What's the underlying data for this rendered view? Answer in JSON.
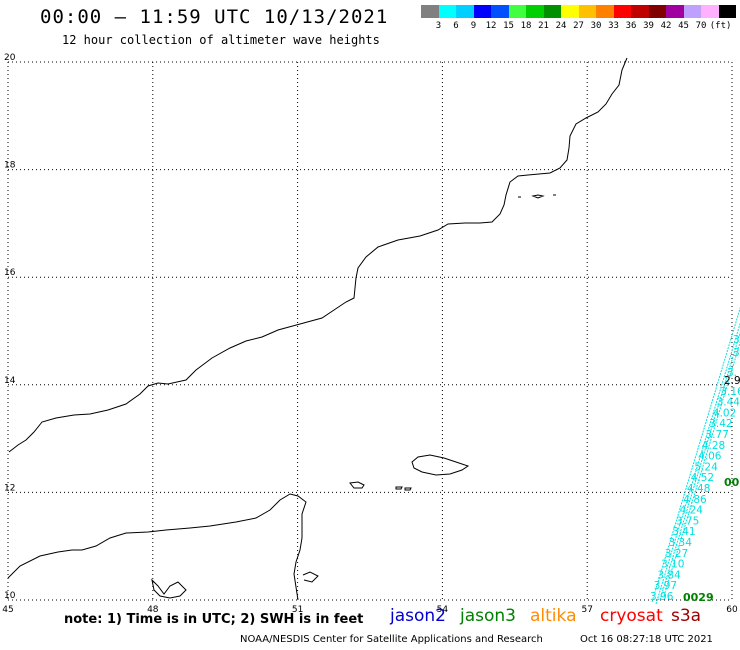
{
  "header": {
    "title": "00:00 — 11:59 UTC 10/13/2021",
    "subtitle": "12 hour collection of altimeter wave heights"
  },
  "color_scale": {
    "colors": [
      "#808080",
      "#00ffff",
      "#00d0ff",
      "#0000ff",
      "#0050ff",
      "#40ff40",
      "#00d000",
      "#009000",
      "#ffff00",
      "#ffc000",
      "#ff8000",
      "#ff0000",
      "#c00000",
      "#800000",
      "#a000a0",
      "#c0a0ff",
      "#ffb0ff",
      "#000000"
    ],
    "labels": [
      "3",
      "6",
      "9",
      "12",
      "15",
      "18",
      "21",
      "24",
      "27",
      "30",
      "33",
      "36",
      "39",
      "42",
      "45",
      "70",
      "(ft)"
    ]
  },
  "map": {
    "lon_range": [
      45,
      60
    ],
    "lat_range": [
      10,
      20
    ],
    "lon_ticks": [
      "45",
      "48",
      "51",
      "54",
      "57",
      "60"
    ],
    "lat_ticks": [
      "20",
      "18",
      "16",
      "14",
      "12",
      "10"
    ],
    "track_color": "#00e0e0",
    "track_values": [
      "3.96",
      "3.97",
      "3.84",
      "3.10",
      "3.27",
      "3.34",
      "3.41",
      "3.75",
      "4.24",
      "4.86",
      "4.48",
      "4.52",
      "5.24",
      "4.06",
      "4.28",
      "3.77",
      "3.42",
      "4.02",
      "3.44",
      "3.16",
      "2.9"
    ],
    "time_labels": [
      "0029",
      "00"
    ],
    "time_label_color": "#008000"
  },
  "footer": {
    "note": "note: 1) Time is in UTC; 2) SWH is in feet",
    "satellites": [
      {
        "name": "jason2",
        "color": "#0000d0"
      },
      {
        "name": "jason3",
        "color": "#008000"
      },
      {
        "name": "altika",
        "color": "#ff8c00"
      },
      {
        "name": "cryosat",
        "color": "#ff0000"
      },
      {
        "name": "s3a",
        "color": "#a00000"
      }
    ],
    "credit": "NOAA/NESDIS Center for Satellite Applications and Research",
    "timestamp": "Oct 16 08:27:18 UTC 2021"
  }
}
